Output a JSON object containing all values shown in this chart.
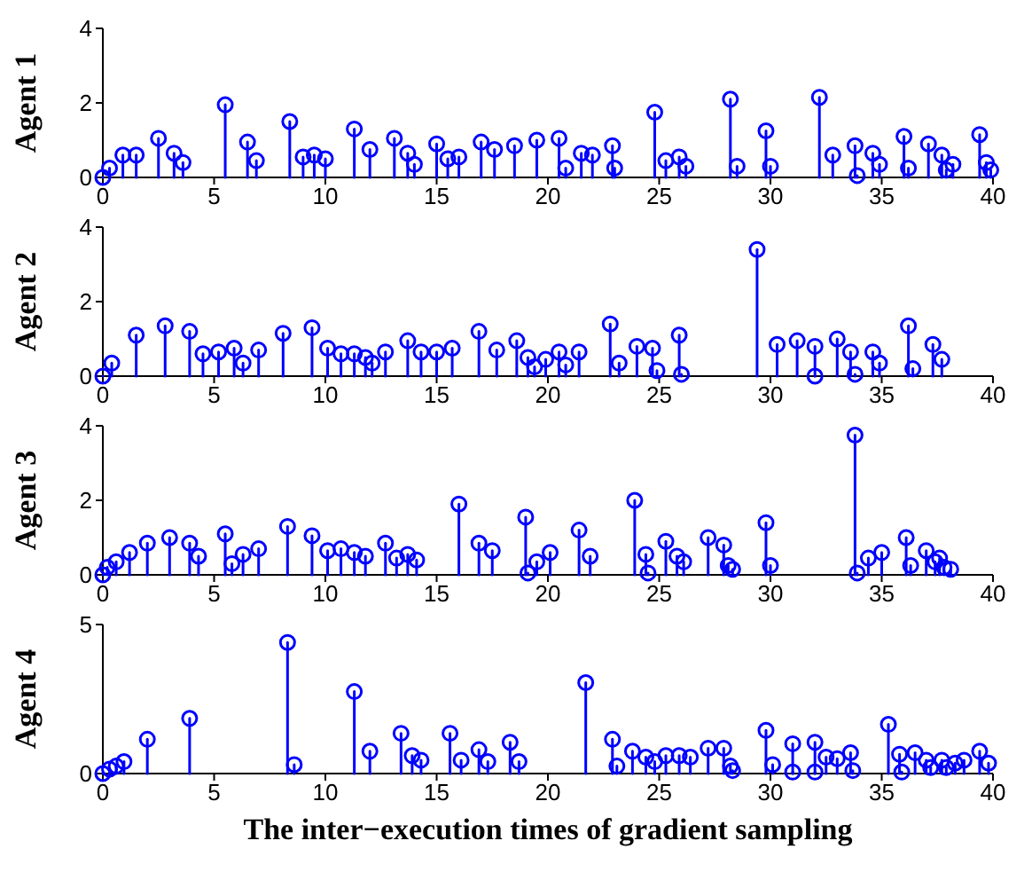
{
  "chart_data": [
    {
      "type": "lollipop",
      "ylabel": "Agent 1",
      "xlim": [
        0,
        40
      ],
      "xticks": [
        0,
        5,
        10,
        15,
        20,
        25,
        30,
        35,
        40
      ],
      "ylim": [
        0,
        4
      ],
      "yticks": [
        0,
        2,
        4
      ],
      "marker": "circle",
      "line_style": "solid",
      "grid": false,
      "legend": false,
      "series": [
        {
          "color": "#0000ff",
          "x": [
            0,
            0.3,
            0.9,
            1.5,
            2.5,
            3.2,
            3.6,
            5.5,
            6.5,
            6.9,
            8.4,
            9,
            9.5,
            10,
            11.3,
            12,
            13.1,
            13.7,
            14,
            15,
            15.5,
            16,
            17,
            17.6,
            18.5,
            19.5,
            20.5,
            20.8,
            21.5,
            22,
            22.9,
            23,
            24.8,
            25.3,
            25.9,
            26.2,
            28.2,
            28.5,
            29.8,
            30,
            32.2,
            32.8,
            33.8,
            33.9,
            34.6,
            34.9,
            36,
            36.2,
            37.1,
            37.7,
            37.9,
            38.2,
            39.4,
            39.7,
            39.9
          ],
          "values": [
            0,
            0.25,
            0.6,
            0.6,
            1.05,
            0.65,
            0.4,
            1.95,
            0.95,
            0.45,
            1.5,
            0.55,
            0.6,
            0.5,
            1.3,
            0.75,
            1.05,
            0.65,
            0.35,
            0.9,
            0.5,
            0.55,
            0.95,
            0.75,
            0.85,
            1,
            1.05,
            0.25,
            0.65,
            0.6,
            0.85,
            0.25,
            1.75,
            0.45,
            0.55,
            0.3,
            2.1,
            0.3,
            1.25,
            0.3,
            2.15,
            0.6,
            0.85,
            0.05,
            0.65,
            0.35,
            1.1,
            0.25,
            0.9,
            0.6,
            0.2,
            0.35,
            1.15,
            0.4,
            0.2
          ]
        }
      ]
    },
    {
      "type": "lollipop",
      "ylabel": "Agent 2",
      "xlim": [
        0,
        40
      ],
      "xticks": [
        0,
        5,
        10,
        15,
        20,
        25,
        30,
        35,
        40
      ],
      "ylim": [
        0,
        4
      ],
      "yticks": [
        0,
        2,
        4
      ],
      "marker": "circle",
      "line_style": "solid",
      "grid": false,
      "legend": false,
      "series": [
        {
          "color": "#0000ff",
          "x": [
            0,
            0.4,
            1.5,
            2.8,
            3.9,
            4.5,
            5.2,
            5.9,
            6.3,
            7,
            8.1,
            9.4,
            10.1,
            10.7,
            11.3,
            11.8,
            12.1,
            12.7,
            13.7,
            14.3,
            15,
            15.7,
            16.9,
            17.7,
            18.6,
            19.1,
            19.4,
            19.9,
            20.5,
            20.8,
            21.4,
            22.8,
            23.2,
            24,
            24.7,
            24.9,
            25.9,
            26,
            29.4,
            30.3,
            31.2,
            32,
            32,
            33,
            33.6,
            33.8,
            34.6,
            34.9,
            36.2,
            36.4,
            37.3,
            37.7
          ],
          "values": [
            0,
            0.35,
            1.1,
            1.35,
            1.2,
            0.6,
            0.65,
            0.75,
            0.35,
            0.7,
            1.15,
            1.3,
            0.75,
            0.6,
            0.6,
            0.5,
            0.35,
            0.65,
            0.95,
            0.65,
            0.65,
            0.75,
            1.2,
            0.7,
            0.95,
            0.5,
            0.25,
            0.45,
            0.65,
            0.3,
            0.65,
            1.4,
            0.35,
            0.8,
            0.75,
            0.15,
            1.1,
            0.05,
            3.4,
            0.85,
            0.95,
            0.8,
            0,
            1,
            0.65,
            0.05,
            0.65,
            0.35,
            1.35,
            0.2,
            0.85,
            0.45
          ]
        }
      ]
    },
    {
      "type": "lollipop",
      "ylabel": "Agent 3",
      "xlim": [
        0,
        40
      ],
      "xticks": [
        0,
        5,
        10,
        15,
        20,
        25,
        30,
        35,
        40
      ],
      "ylim": [
        0,
        4
      ],
      "yticks": [
        0,
        2,
        4
      ],
      "marker": "circle",
      "line_style": "solid",
      "grid": false,
      "legend": false,
      "series": [
        {
          "color": "#0000ff",
          "x": [
            0,
            0.2,
            0.6,
            1.2,
            2,
            3,
            3.9,
            4.3,
            5.5,
            5.8,
            6.3,
            7,
            8.3,
            9.4,
            10.1,
            10.7,
            11.3,
            11.8,
            12.7,
            13.2,
            13.7,
            14.1,
            16,
            16.9,
            17.5,
            19,
            19.1,
            19.5,
            20.1,
            21.4,
            21.9,
            23.9,
            24.4,
            24.5,
            25.3,
            25.8,
            26.1,
            27.2,
            27.9,
            28.1,
            28.3,
            29.8,
            30,
            33.8,
            33.9,
            34.4,
            35,
            36.1,
            36.3,
            37,
            37.4,
            37.6,
            37.8,
            38.1
          ],
          "values": [
            0,
            0.2,
            0.35,
            0.6,
            0.85,
            1,
            0.85,
            0.5,
            1.1,
            0.3,
            0.55,
            0.7,
            1.3,
            1.05,
            0.65,
            0.7,
            0.6,
            0.5,
            0.85,
            0.45,
            0.55,
            0.4,
            1.9,
            0.85,
            0.65,
            1.55,
            0.05,
            0.35,
            0.6,
            1.2,
            0.5,
            2,
            0.55,
            0.05,
            0.9,
            0.5,
            0.35,
            1,
            0.8,
            0.25,
            0.15,
            1.4,
            0.25,
            3.75,
            0.05,
            0.45,
            0.6,
            1,
            0.25,
            0.65,
            0.35,
            0.45,
            0.2,
            0.15
          ]
        }
      ]
    },
    {
      "type": "lollipop",
      "ylabel": "Agent 4",
      "xlabel": "The inter−execution times of gradient sampling",
      "xlim": [
        0,
        40
      ],
      "xticks": [
        0,
        5,
        10,
        15,
        20,
        25,
        30,
        35,
        40
      ],
      "ylim": [
        0,
        5
      ],
      "yticks": [
        0,
        5
      ],
      "marker": "circle",
      "line_style": "solid",
      "grid": false,
      "legend": false,
      "series": [
        {
          "color": "#0000ff",
          "x": [
            0,
            0.3,
            0.6,
            0.95,
            2,
            3.9,
            8.3,
            8.6,
            11.3,
            12,
            13.4,
            13.9,
            14.3,
            15.6,
            16.1,
            16.9,
            17.3,
            18.3,
            18.7,
            21.7,
            22.9,
            23.1,
            23.8,
            24.4,
            24.8,
            25.3,
            25.9,
            26.4,
            27.2,
            27.9,
            28.2,
            28.3,
            29.8,
            30.1,
            31,
            31,
            32,
            32,
            32.5,
            33,
            33.6,
            33.7,
            35.3,
            35.8,
            35.9,
            36.5,
            37,
            37.2,
            37.7,
            37.9,
            38.3,
            38.7,
            39.4,
            39.8
          ],
          "values": [
            0,
            0.15,
            0.25,
            0.4,
            1.15,
            1.85,
            4.4,
            0.3,
            2.75,
            0.75,
            1.35,
            0.6,
            0.45,
            1.35,
            0.45,
            0.8,
            0.4,
            1.05,
            0.4,
            3.05,
            1.15,
            0.25,
            0.75,
            0.55,
            0.4,
            0.6,
            0.6,
            0.55,
            0.85,
            0.85,
            0.25,
            0.1,
            1.45,
            0.3,
            1,
            0.05,
            1.05,
            0.05,
            0.55,
            0.5,
            0.7,
            0.1,
            1.65,
            0.65,
            0.05,
            0.7,
            0.45,
            0.2,
            0.45,
            0.2,
            0.35,
            0.45,
            0.75,
            0.35
          ]
        }
      ]
    }
  ]
}
